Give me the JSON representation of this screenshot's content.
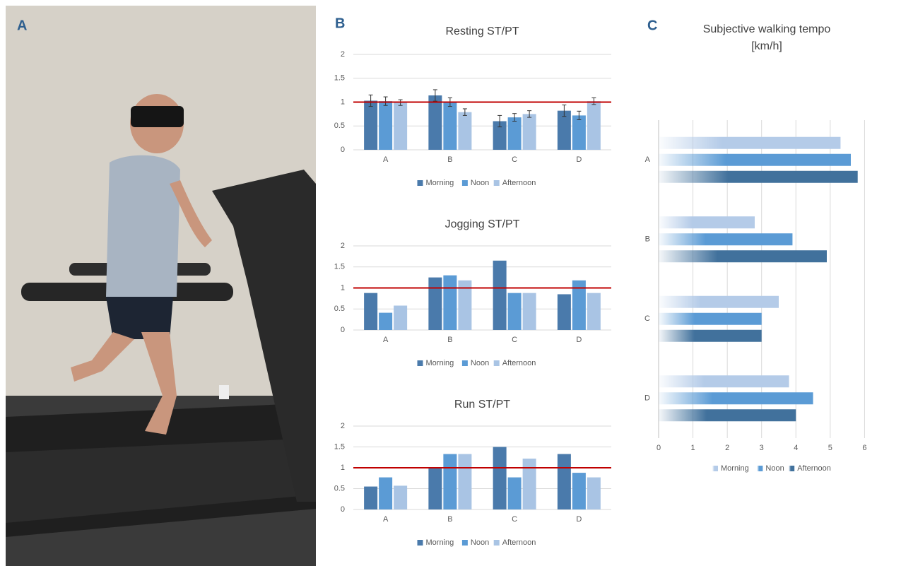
{
  "panel_labels": [
    "A",
    "B",
    "C"
  ],
  "chart_data": [
    {
      "type": "bar",
      "title": "Resting ST/PT",
      "categories": [
        "A",
        "B",
        "C",
        "D"
      ],
      "series": [
        {
          "name": "Morning",
          "color": "#4a7aab",
          "values": [
            1.03,
            1.14,
            0.6,
            0.82
          ],
          "errors": [
            0.12,
            0.12,
            0.12,
            0.12
          ]
        },
        {
          "name": "Noon",
          "color": "#5b9bd5",
          "values": [
            1.02,
            1.0,
            0.68,
            0.72
          ],
          "errors": [
            0.09,
            0.09,
            0.08,
            0.09
          ]
        },
        {
          "name": "Afternoon",
          "color": "#a9c4e4",
          "values": [
            0.99,
            0.79,
            0.75,
            1.02
          ],
          "errors": [
            0.06,
            0.07,
            0.07,
            0.07
          ]
        }
      ],
      "ylim": [
        0,
        2
      ],
      "yticks": [
        0,
        0.5,
        1,
        1.5,
        2
      ],
      "grid": true,
      "reference_line": 1,
      "reference_color": "#c00000",
      "legend": "bottom"
    },
    {
      "type": "bar",
      "title": "Jogging ST/PT",
      "categories": [
        "A",
        "B",
        "C",
        "D"
      ],
      "series": [
        {
          "name": "Morning",
          "color": "#4a7aab",
          "values": [
            0.88,
            1.25,
            1.65,
            0.85
          ]
        },
        {
          "name": "Noon",
          "color": "#5b9bd5",
          "values": [
            0.41,
            1.3,
            0.88,
            1.18
          ]
        },
        {
          "name": "Afternoon",
          "color": "#a9c4e4",
          "values": [
            0.58,
            1.18,
            0.88,
            0.88
          ]
        }
      ],
      "ylim": [
        0,
        2
      ],
      "yticks": [
        0,
        0.5,
        1,
        1.5,
        2
      ],
      "grid": true,
      "reference_line": 1,
      "reference_color": "#c00000",
      "legend": "bottom"
    },
    {
      "type": "bar",
      "title": "Run ST/PT",
      "categories": [
        "A",
        "B",
        "C",
        "D"
      ],
      "series": [
        {
          "name": "Morning",
          "color": "#4a7aab",
          "values": [
            0.55,
            1.0,
            1.5,
            1.33
          ]
        },
        {
          "name": "Noon",
          "color": "#5b9bd5",
          "values": [
            0.77,
            1.33,
            0.77,
            0.88
          ]
        },
        {
          "name": "Afternoon",
          "color": "#a9c4e4",
          "values": [
            0.57,
            1.33,
            1.22,
            0.77
          ]
        }
      ],
      "ylim": [
        0,
        2
      ],
      "yticks": [
        0,
        0.5,
        1,
        1.5,
        2
      ],
      "grid": true,
      "reference_line": 1,
      "reference_color": "#c00000",
      "legend": "bottom"
    },
    {
      "type": "barh",
      "title": "Subjective walking tempo",
      "subtitle": "[km/h]",
      "categories": [
        "A",
        "B",
        "C",
        "D"
      ],
      "series": [
        {
          "name": "Morning",
          "color": "#b4cbe8",
          "values": [
            5.3,
            2.8,
            3.5,
            3.8
          ]
        },
        {
          "name": "Noon",
          "color": "#5b9bd5",
          "values": [
            5.6,
            3.9,
            3.0,
            4.5
          ]
        },
        {
          "name": "Afternoon",
          "color": "#41719c",
          "values": [
            5.8,
            4.9,
            3.0,
            4.0
          ]
        }
      ],
      "xlim": [
        0,
        7
      ],
      "xticks": [
        0,
        1,
        2,
        3,
        4,
        5,
        6
      ],
      "grid": true,
      "legend": "bottom"
    }
  ]
}
